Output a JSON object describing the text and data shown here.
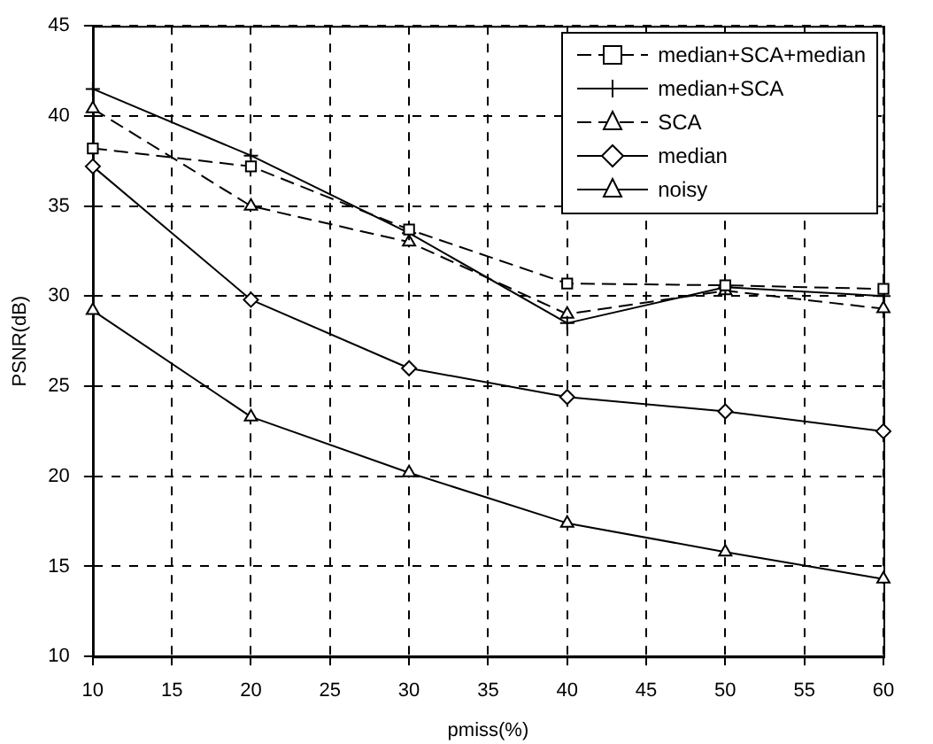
{
  "chart_data": {
    "type": "line",
    "xlabel": "pmiss(%)",
    "ylabel": "PSNR(dB)",
    "x": [
      10,
      20,
      30,
      40,
      50,
      60
    ],
    "xlim": [
      10,
      60
    ],
    "xticks": [
      10,
      15,
      20,
      25,
      30,
      35,
      40,
      45,
      50,
      55,
      60
    ],
    "ylim": [
      10,
      45
    ],
    "yticks": [
      10,
      15,
      20,
      25,
      30,
      35,
      40,
      45
    ],
    "grid": true,
    "legend": "top right",
    "series": [
      {
        "name": "median+SCA+median",
        "color": "#000000",
        "marker": "square",
        "line_style": "dashed",
        "values": [
          38.2,
          37.2,
          33.7,
          30.7,
          30.6,
          30.4
        ]
      },
      {
        "name": "median+SCA",
        "color": "#000000",
        "marker": "cross",
        "line_style": "solid",
        "values": [
          41.5,
          37.8,
          33.5,
          28.5,
          30.5,
          30.0
        ]
      },
      {
        "name": "SCA",
        "color": "#000000",
        "marker": "triangle",
        "line_style": "dashed",
        "values": [
          40.4,
          35.0,
          33.0,
          29.0,
          30.3,
          29.3
        ]
      },
      {
        "name": "median",
        "color": "#000000",
        "marker": "diamond",
        "line_style": "solid",
        "values": [
          37.2,
          29.8,
          26.0,
          24.4,
          23.6,
          22.5
        ]
      },
      {
        "name": "noisy",
        "color": "#000000",
        "marker": "triangle",
        "line_style": "solid",
        "values": [
          29.2,
          23.3,
          20.2,
          17.4,
          15.8,
          14.3
        ]
      }
    ]
  }
}
